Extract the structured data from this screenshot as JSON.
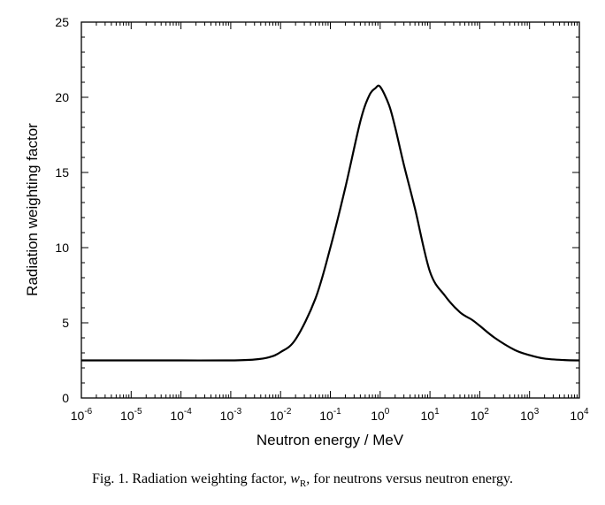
{
  "chart_data": {
    "type": "line",
    "title": "",
    "xlabel": "Neutron energy / MeV",
    "ylabel": "Radiation weighting factor",
    "x_scale": "log",
    "xlim": [
      1e-06,
      10000.0
    ],
    "ylim": [
      0,
      25
    ],
    "x_ticks": [
      {
        "base": "10",
        "exp": "-6"
      },
      {
        "base": "10",
        "exp": "-5"
      },
      {
        "base": "10",
        "exp": "-4"
      },
      {
        "base": "10",
        "exp": "-3"
      },
      {
        "base": "10",
        "exp": "-2"
      },
      {
        "base": "10",
        "exp": "-1"
      },
      {
        "base": "10",
        "exp": "0"
      },
      {
        "base": "10",
        "exp": "1"
      },
      {
        "base": "10",
        "exp": "2"
      },
      {
        "base": "10",
        "exp": "3"
      },
      {
        "base": "10",
        "exp": "4"
      }
    ],
    "y_ticks": [
      "0",
      "5",
      "10",
      "15",
      "20",
      "25"
    ],
    "grid": false,
    "series": [
      {
        "name": "w_R",
        "x": [
          1e-06,
          1e-05,
          0.0001,
          0.001,
          0.003,
          0.006,
          0.01,
          0.02,
          0.05,
          0.1,
          0.2,
          0.4,
          0.6,
          0.8,
          1.0,
          1.5,
          2,
          3,
          5,
          10,
          20,
          40,
          70,
          100,
          200,
          500,
          1000,
          2000,
          5000,
          10000
        ],
        "y": [
          2.5,
          2.5,
          2.5,
          2.5,
          2.56,
          2.72,
          3.05,
          3.9,
          6.6,
          10.0,
          14.0,
          18.4,
          20.1,
          20.6,
          20.7,
          19.5,
          18.0,
          15.5,
          12.6,
          8.4,
          6.8,
          5.7,
          5.2,
          4.8,
          4.0,
          3.2,
          2.85,
          2.62,
          2.52,
          2.5
        ]
      }
    ]
  },
  "caption": {
    "prefix": "Fig. 1.  Radiation weighting factor, ",
    "symbol": "w",
    "subscript": "R",
    "suffix": ", for neutrons versus neutron energy."
  }
}
